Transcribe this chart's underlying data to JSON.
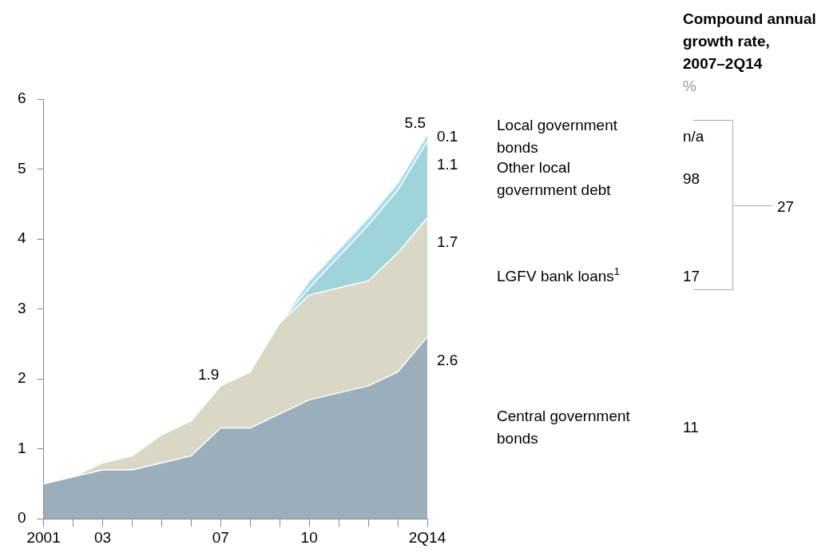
{
  "chart_data": {
    "type": "area",
    "stacked": true,
    "categories": [
      "2001",
      null,
      "03",
      null,
      null,
      null,
      "07",
      null,
      null,
      "10",
      null,
      null,
      null,
      "2Q14"
    ],
    "ylim": [
      0,
      6
    ],
    "yticks": [
      0,
      1,
      2,
      3,
      4,
      5,
      6
    ],
    "grid": false,
    "legend": false,
    "series": [
      {
        "name": "Central government bonds",
        "color": "#9aafbb",
        "values": [
          0.5,
          0.6,
          0.7,
          0.7,
          0.8,
          0.9,
          1.3,
          1.3,
          1.5,
          1.7,
          1.8,
          1.9,
          2.1,
          2.6
        ],
        "value_labels": [
          null,
          null,
          null,
          null,
          null,
          null,
          null,
          null,
          null,
          null,
          null,
          null,
          null,
          "2.6"
        ]
      },
      {
        "name": "LGFV bank loans$^{1}$",
        "color": "#d9d8c7",
        "values": [
          0,
          0,
          0.1,
          0.2,
          0.4,
          0.5,
          0.6,
          0.8,
          1.3,
          1.5,
          1.5,
          1.5,
          1.7,
          1.7
        ],
        "value_labels": [
          null,
          null,
          null,
          null,
          null,
          null,
          null,
          null,
          null,
          null,
          null,
          null,
          null,
          "1.7"
        ]
      },
      {
        "name": "Other local government debt",
        "color": "#9fd5da",
        "values": [
          null,
          null,
          null,
          null,
          null,
          null,
          null,
          null,
          0,
          0.1,
          0.45,
          0.8,
          0.9,
          1.1
        ],
        "value_labels": [
          null,
          null,
          null,
          null,
          null,
          null,
          null,
          null,
          null,
          null,
          null,
          null,
          null,
          "1.1"
        ]
      },
      {
        "name": "Local government bonds",
        "color": "#a8dcf0",
        "values": [
          null,
          null,
          null,
          null,
          null,
          null,
          null,
          null,
          0,
          0.1,
          0.1,
          0.1,
          0.1,
          0.1
        ],
        "value_labels": [
          null,
          null,
          null,
          null,
          null,
          null,
          null,
          null,
          null,
          null,
          null,
          null,
          null,
          "0.1"
        ]
      }
    ],
    "annotations": [
      "Compound annual growth rate, 2007–2Q14",
      "%",
      "n/a",
      "98",
      "17",
      "11",
      "27",
      {
        "text": "5.5",
        "x": "2Q14",
        "y": 5.5
      },
      {
        "text": "1.9",
        "x": "07",
        "y": 1.9
      }
    ]
  }
}
